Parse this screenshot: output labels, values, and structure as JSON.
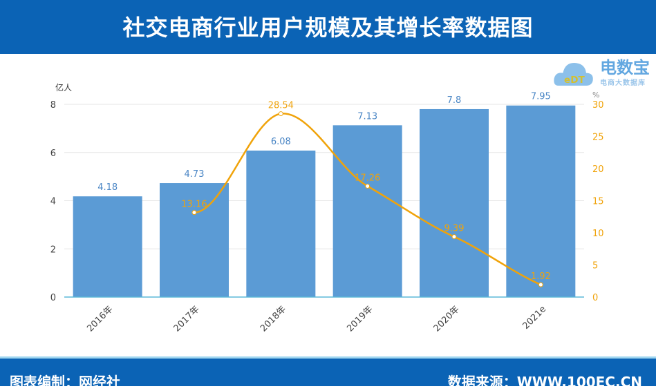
{
  "title": "社交电商行业用户规模及其增长率数据图",
  "footer": {
    "left": "图表编制：网经社",
    "right": "数据来源：WWW.100EC.CN"
  },
  "logo": {
    "name": "电数宝",
    "sub": "电商大数据库",
    "mark": "eDT"
  },
  "colors": {
    "bar": "#5b9bd5",
    "line": "#f0a30a",
    "header": "#0b63b5"
  },
  "chart_data": {
    "type": "bar+line",
    "categories": [
      "2016年",
      "2017年",
      "2018年",
      "2019年",
      "2020年",
      "2021e"
    ],
    "series": [
      {
        "values": [
          4.18,
          4.73,
          6.08,
          7.13,
          7.8,
          7.95
        ],
        "axis": "left",
        "type": "bar"
      },
      {
        "values": [
          null,
          13.16,
          28.54,
          17.26,
          9.39,
          1.92
        ],
        "axis": "right",
        "type": "line"
      }
    ],
    "ylabel": "亿人",
    "y2label": "%",
    "ylim": [
      0,
      8
    ],
    "yticks": [
      0,
      2,
      4,
      6,
      8
    ],
    "y2lim": [
      0,
      30
    ],
    "y2ticks": [
      0,
      5,
      10,
      15,
      20,
      25,
      30
    ],
    "grid": true
  }
}
